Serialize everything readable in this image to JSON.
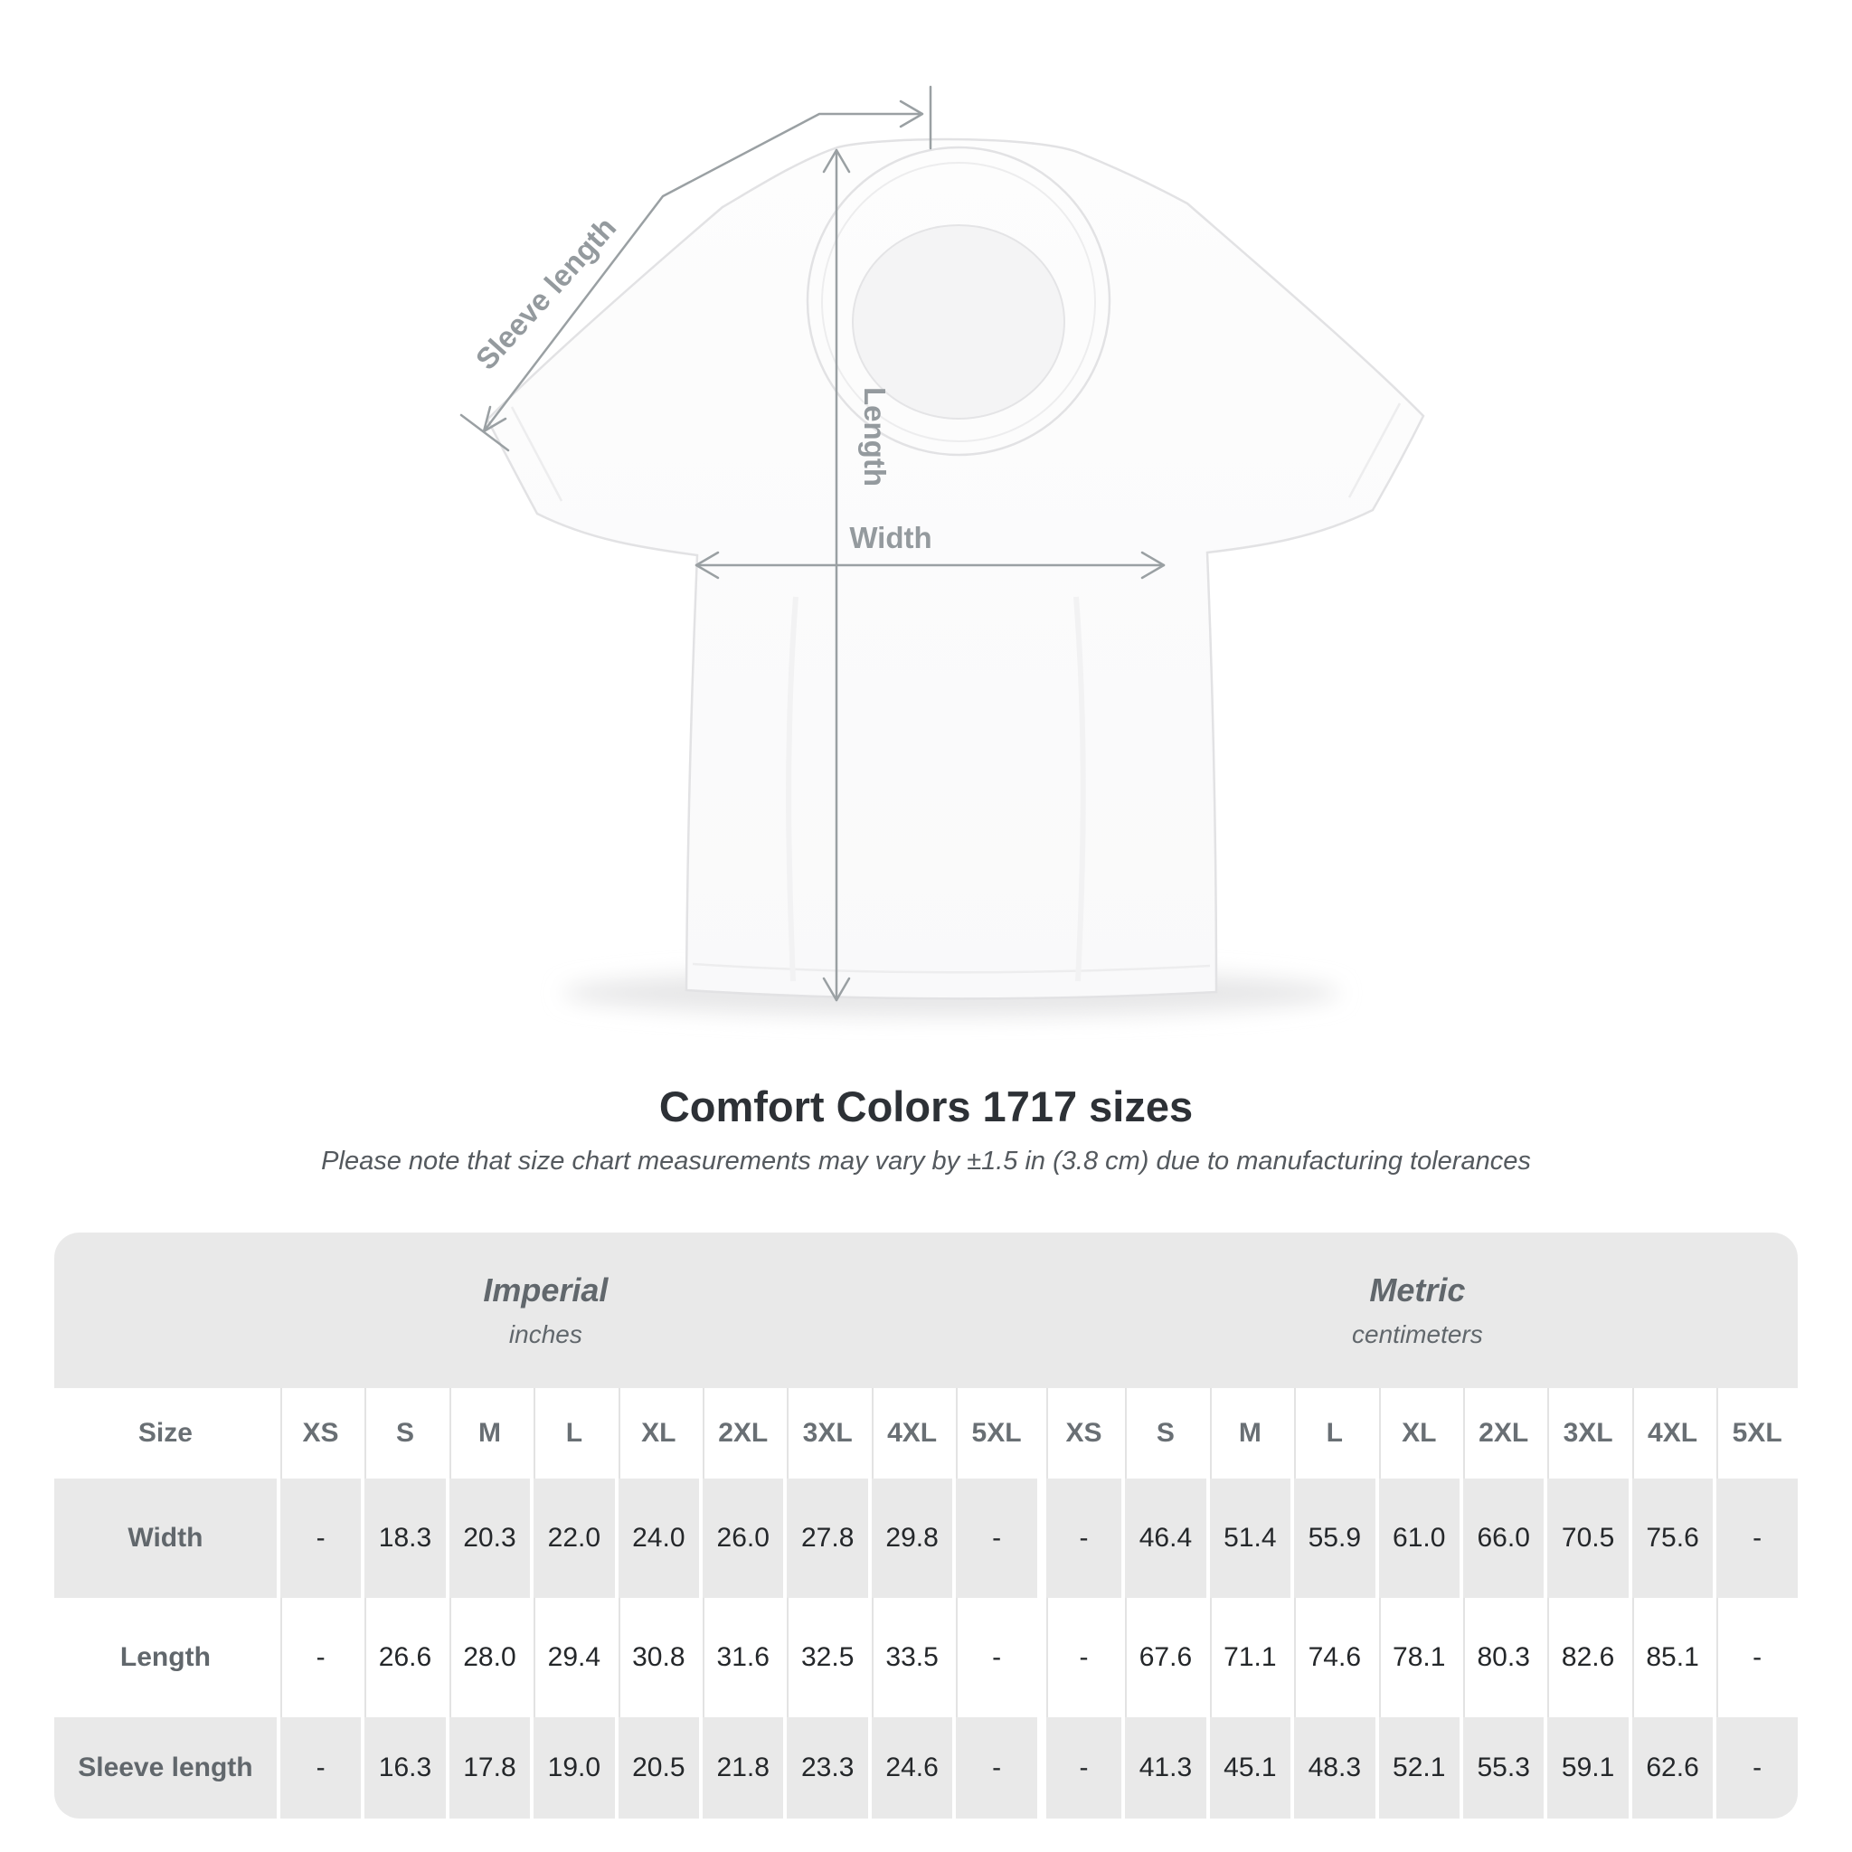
{
  "diagram": {
    "sleeve_length_label": "Sleeve length",
    "length_label": "Length",
    "width_label": "Width"
  },
  "title": "Comfort Colors 1717 sizes",
  "subtitle": "Please note that size chart measurements may vary by ±1.5 in (3.8 cm) due to manufacturing tolerances",
  "table": {
    "sections": [
      {
        "label": "Imperial",
        "sublabel": "inches"
      },
      {
        "label": "Metric",
        "sublabel": "centimeters"
      }
    ],
    "size_header": "Size",
    "sizes": [
      "XS",
      "S",
      "M",
      "L",
      "XL",
      "2XL",
      "3XL",
      "4XL",
      "5XL"
    ],
    "rows": [
      {
        "label": "Width",
        "imperial": [
          "-",
          "18.3",
          "20.3",
          "22.0",
          "24.0",
          "26.0",
          "27.8",
          "29.8",
          "-"
        ],
        "metric": [
          "-",
          "46.4",
          "51.4",
          "55.9",
          "61.0",
          "66.0",
          "70.5",
          "75.6",
          "-"
        ]
      },
      {
        "label": "Length",
        "imperial": [
          "-",
          "26.6",
          "28.0",
          "29.4",
          "30.8",
          "31.6",
          "32.5",
          "33.5",
          "-"
        ],
        "metric": [
          "-",
          "67.6",
          "71.1",
          "74.6",
          "78.1",
          "80.3",
          "82.6",
          "85.1",
          "-"
        ]
      },
      {
        "label": "Sleeve length",
        "imperial": [
          "-",
          "16.3",
          "17.8",
          "19.0",
          "20.5",
          "21.8",
          "23.3",
          "24.6",
          "-"
        ],
        "metric": [
          "-",
          "41.3",
          "45.1",
          "48.3",
          "52.1",
          "55.3",
          "59.1",
          "62.6",
          "-"
        ]
      }
    ]
  },
  "colors": {
    "band_gray": "#e9e9e9",
    "header_text": "#696f74",
    "value_text": "#24272a",
    "title_text": "#2d3136",
    "annotation_gray": "#9aa0a3"
  }
}
